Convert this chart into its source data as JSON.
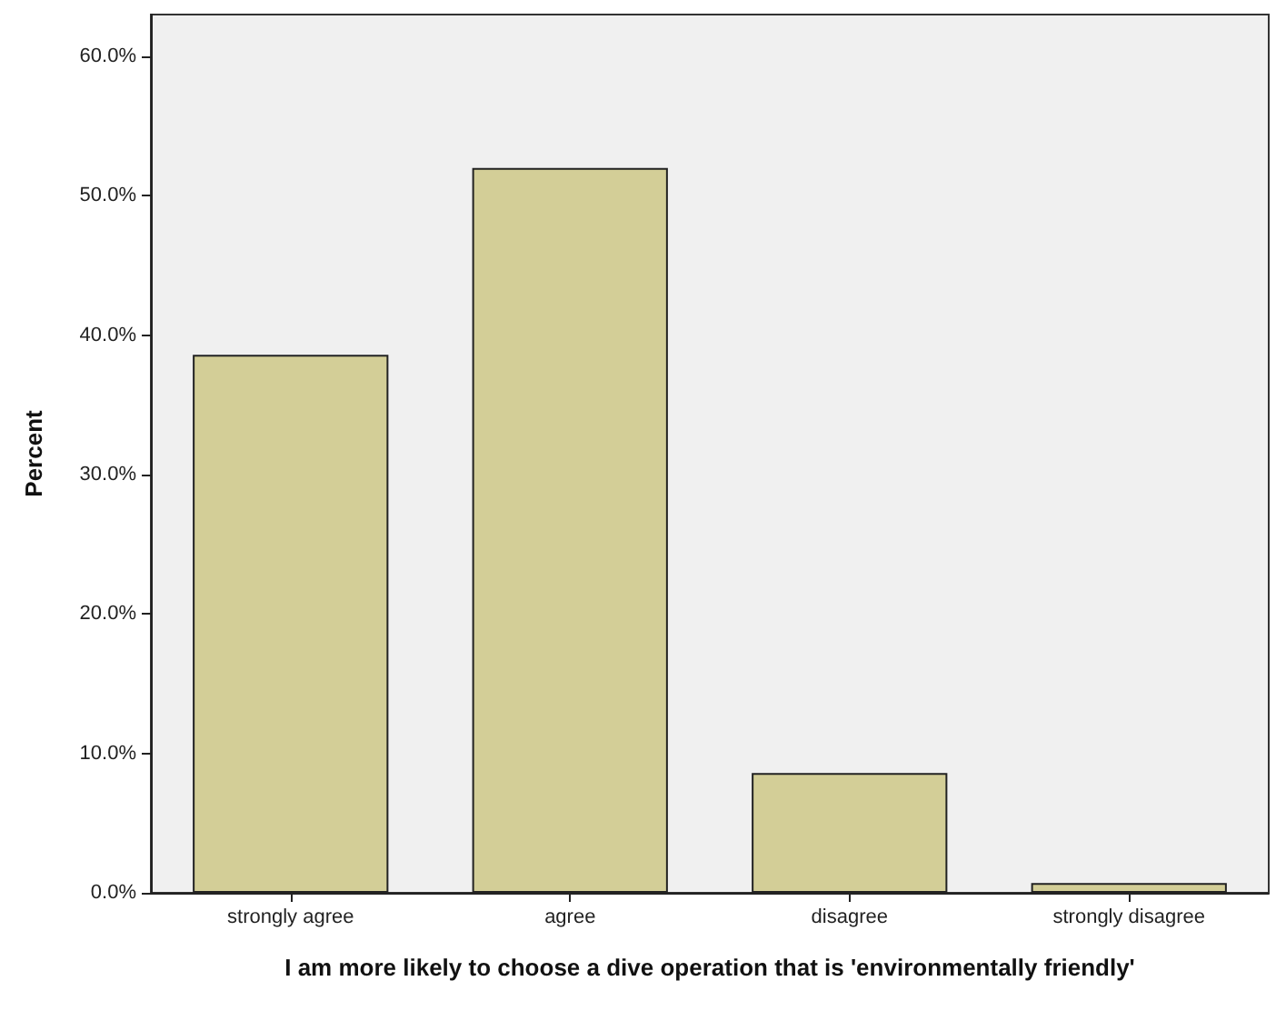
{
  "chart_data": {
    "type": "bar",
    "xlabel": "I am more likely to choose a dive operation that is 'environmentally friendly'",
    "ylabel": "Percent",
    "categories": [
      "strongly agree",
      "agree",
      "disagree",
      "strongly disagree"
    ],
    "values": [
      38.6,
      52.0,
      8.6,
      0.7
    ],
    "color": "#d3ce97",
    "ylim": [
      0,
      63
    ],
    "yticks": [
      {
        "value": 0,
        "label": "0.0%"
      },
      {
        "value": 10,
        "label": "10.0%"
      },
      {
        "value": 20,
        "label": "20.0%"
      },
      {
        "value": 30,
        "label": "30.0%"
      },
      {
        "value": 40,
        "label": "40.0%"
      },
      {
        "value": 50,
        "label": "50.0%"
      },
      {
        "value": 60,
        "label": "60.0%"
      }
    ],
    "grid": false
  }
}
